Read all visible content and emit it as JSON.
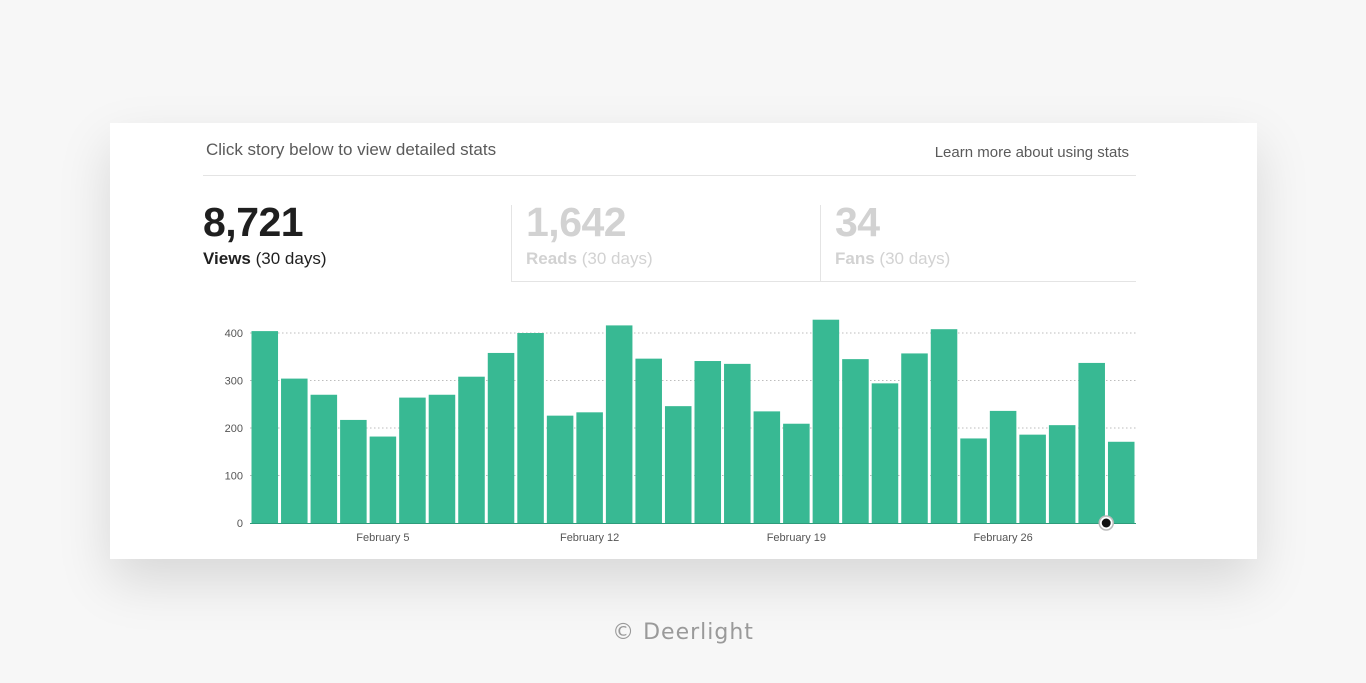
{
  "header": {
    "hint": "Click story below to view detailed stats",
    "learn_more": "Learn more about using stats"
  },
  "tabs": [
    {
      "value": "8,721",
      "label": "Views",
      "period": "(30 days)"
    },
    {
      "value": "1,642",
      "label": "Reads",
      "period": "(30 days)"
    },
    {
      "value": "34",
      "label": "Fans",
      "period": "(30 days)"
    }
  ],
  "colors": {
    "bar": "#38b993",
    "active_text": "#1f1f1f",
    "inactive_text": "#d2d2d2"
  },
  "credit": "© Deerlight",
  "chart_data": {
    "type": "bar",
    "title": "",
    "xlabel": "",
    "ylabel": "",
    "ylim": [
      0,
      400
    ],
    "yticks": [
      0,
      100,
      200,
      300,
      400
    ],
    "grid": true,
    "x_tick_labels": [
      {
        "label": "February 5",
        "at_index": 4.5
      },
      {
        "label": "February 12",
        "at_index": 11.5
      },
      {
        "label": "February 19",
        "at_index": 18.5
      },
      {
        "label": "February 26",
        "at_index": 25.5
      }
    ],
    "values": [
      404,
      304,
      270,
      217,
      182,
      264,
      270,
      308,
      358,
      400,
      226,
      233,
      416,
      346,
      246,
      341,
      335,
      235,
      209,
      428,
      345,
      294,
      357,
      408,
      178,
      236,
      186,
      206,
      337,
      171
    ]
  }
}
